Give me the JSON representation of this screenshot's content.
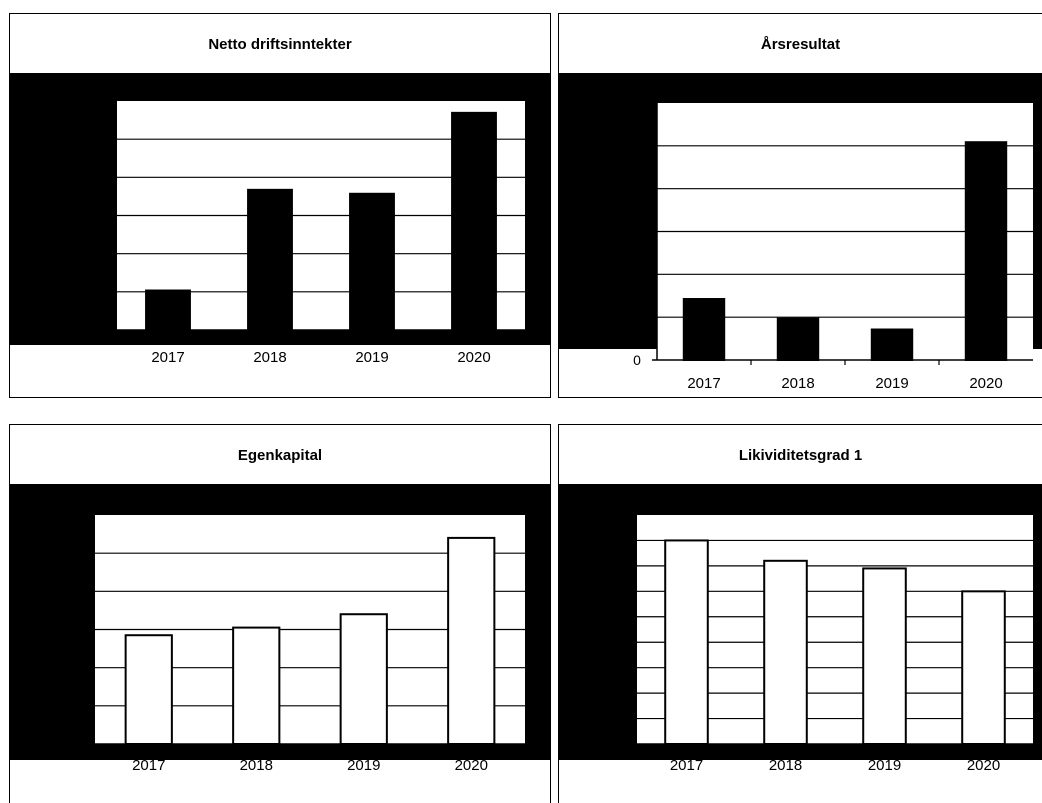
{
  "chart_data": [
    {
      "type": "bar",
      "title": "Netto driftsinntekter",
      "categories": [
        "2017",
        "2018",
        "2019",
        "2020"
      ],
      "values": [
        1.0,
        3.55,
        3.45,
        5.5
      ],
      "ylim": [
        0,
        5.8
      ],
      "grid": true,
      "bar_fill": "#000000",
      "show_zero": false
    },
    {
      "type": "bar",
      "title": "Årsresultat",
      "categories": [
        "2017",
        "2018",
        "2019",
        "2020"
      ],
      "values": [
        1.4,
        0.95,
        0.7,
        5.0
      ],
      "ylim": [
        0,
        5.9
      ],
      "grid": true,
      "bar_fill": "#000000",
      "show_zero": true,
      "zero_label": "0"
    },
    {
      "type": "bar",
      "title": "Egenkapital",
      "categories": [
        "2017",
        "2018",
        "2019",
        "2020"
      ],
      "values": [
        2.85,
        3.05,
        3.4,
        5.4
      ],
      "ylim": [
        0,
        6.0
      ],
      "grid": true,
      "bar_fill": "#ffffff",
      "show_zero": false
    },
    {
      "type": "bar",
      "title": "Likividitetsgrad 1",
      "categories": [
        "2017",
        "2018",
        "2019",
        "2020"
      ],
      "values": [
        8.0,
        7.2,
        6.9,
        6.0
      ],
      "ylim": [
        0,
        9.0
      ],
      "grid": true,
      "bar_fill": "#ffffff",
      "show_zero": false
    }
  ]
}
